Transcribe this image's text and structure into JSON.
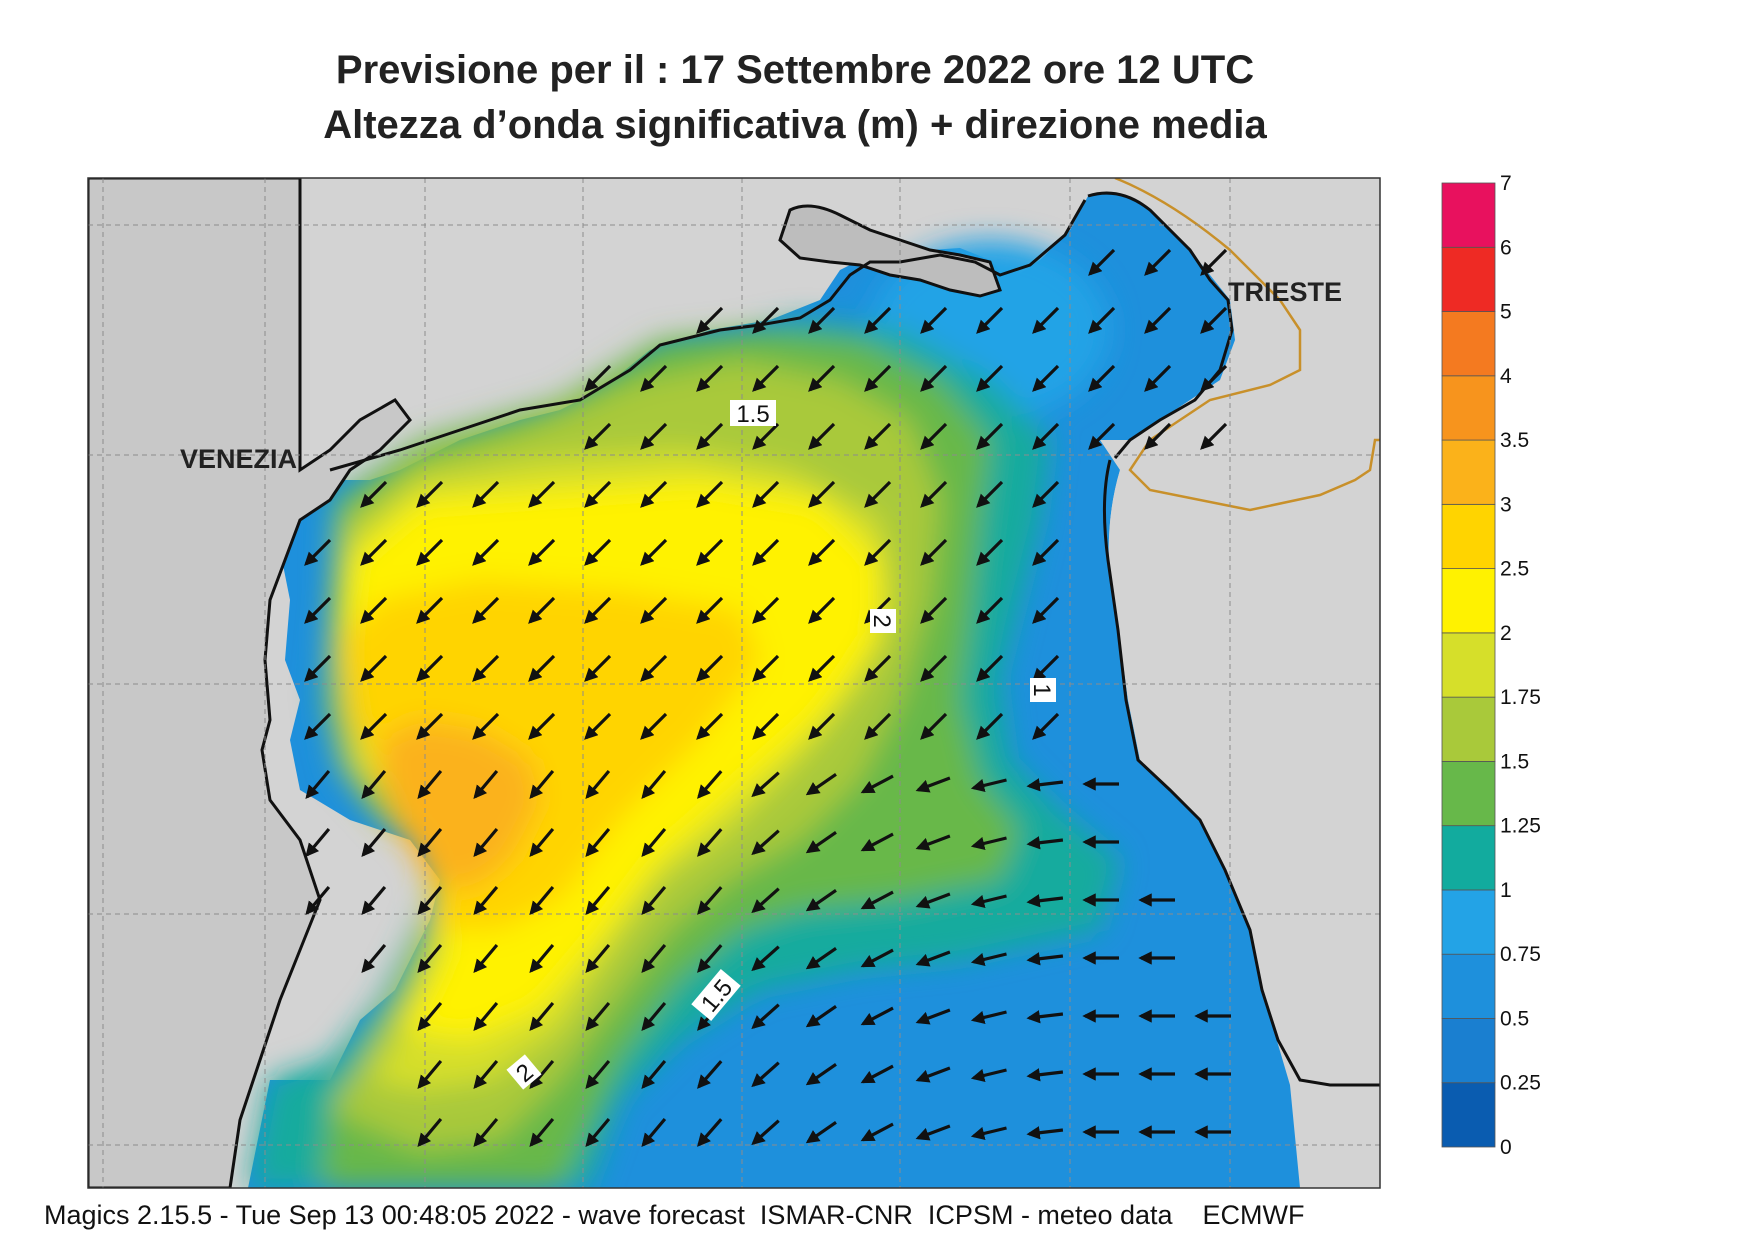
{
  "header": {
    "line1": "Previsione per il  :  17 Settembre 2022   ore 12 UTC",
    "line2": "Altezza d’onda significativa (m) + direzione media"
  },
  "map": {
    "cities": {
      "venezia": "VENEZIA",
      "trieste": "TRIESTE"
    },
    "contour_labels": {
      "a": "1.5",
      "b": "2",
      "c": "1",
      "d": "1.5",
      "e": "2"
    }
  },
  "colorbar": {
    "levels": [
      "0",
      "0.25",
      "0.5",
      "0.75",
      "1",
      "1.25",
      "1.5",
      "1.75",
      "2",
      "2.5",
      "3",
      "3.5",
      "4",
      "5",
      "6",
      "7"
    ],
    "colors": [
      "#0a5cb0",
      "#1a7fd0",
      "#1e90dc",
      "#23a3e6",
      "#12ab9e",
      "#67b84a",
      "#a9c93a",
      "#d6df2a",
      "#fff200",
      "#ffd400",
      "#fbb21a",
      "#f7941d",
      "#f47a20",
      "#ee2a24",
      "#e8115e"
    ]
  },
  "colors": {
    "land": "#d3d3d3",
    "coast": "#111111",
    "border": "#c8902a",
    "arrow": "#111111"
  },
  "footer": "Magics 2.15.5 - Tue Sep 13 00:48:05 2022 - wave forecast  ISMAR-CNR  ICPSM - meteo data    ECMWF"
}
